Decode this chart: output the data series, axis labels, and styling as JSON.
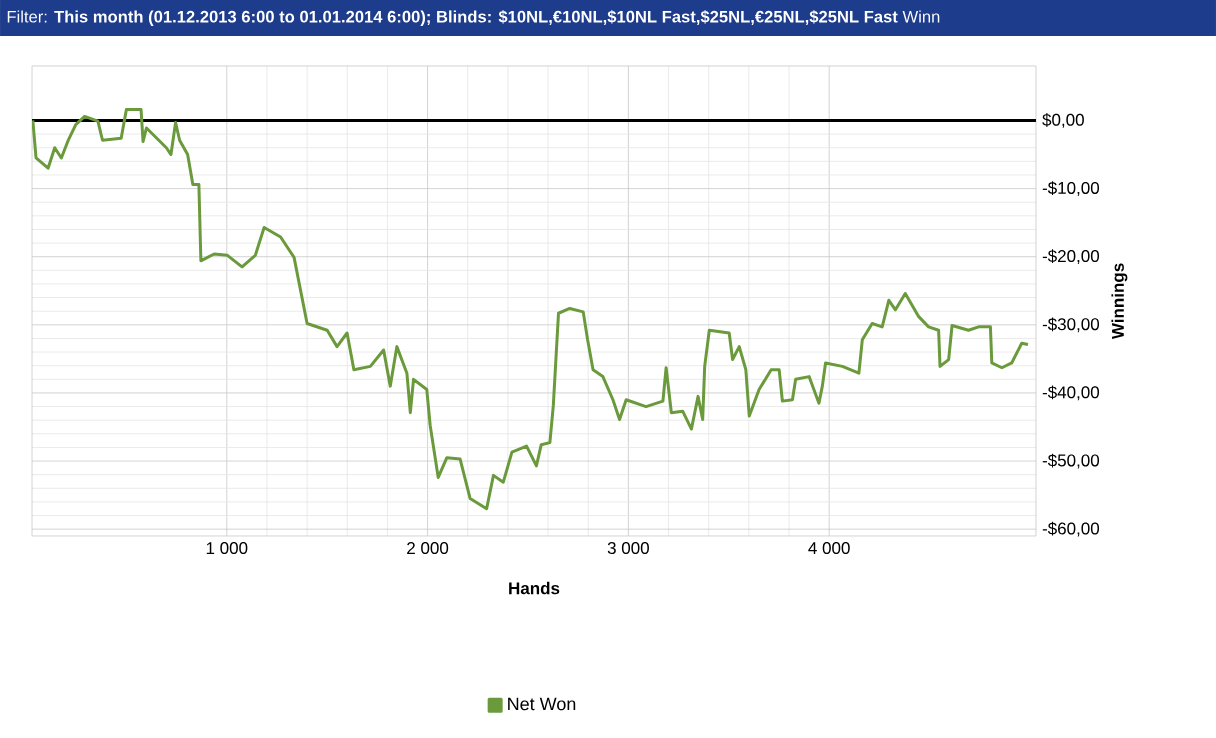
{
  "chart_data": {
    "type": "line",
    "title": "Filter: **This month (01.12.2013 6:00 to 01.01.2014 6:00); Blinds: $10NL,€10NL,$10NL Fast,$25NL,€25NL,$25NL Fast** Winn",
    "xlabel": "Hands",
    "ylabel": "Winnings",
    "series": [
      {
        "name": "Net Won",
        "color": "#6a9a3c",
        "x": [
          34,
          50,
          110,
          143,
          176,
          209,
          248,
          292,
          358,
          381,
          474,
          500,
          573,
          583,
          600,
          699,
          722,
          745,
          765,
          805,
          831,
          861,
          871,
          937,
          1003,
          1076,
          1142,
          1186,
          1268,
          1335,
          1400,
          1500,
          1549,
          1599,
          1633,
          1715,
          1781,
          1814,
          1847,
          1897,
          1914,
          1930,
          1996,
          2013,
          2053,
          2096,
          2162,
          2212,
          2294,
          2328,
          2377,
          2420,
          2493,
          2542,
          2566,
          2609,
          2626,
          2652,
          2708,
          2775,
          2797,
          2824,
          2873,
          2923,
          2956,
          2989,
          3088,
          3172,
          3188,
          3214,
          3271,
          3314,
          3347,
          3370,
          3380,
          3403,
          3502,
          3519,
          3552,
          3585,
          3602,
          3651,
          3711,
          3751,
          3767,
          3817,
          3833,
          3900,
          3949,
          3966,
          3982,
          4066,
          4148,
          4165,
          4214,
          4264,
          4297,
          4330,
          4379,
          4446,
          4495,
          4545,
          4552,
          4595,
          4612,
          4694,
          4744,
          4803,
          4810,
          4860,
          4909,
          4959,
          4990
        ],
        "values": [
          0,
          -5.5,
          -7,
          -4,
          -5.5,
          -3,
          -0.6,
          0.6,
          -0.1,
          -2.9,
          -2.6,
          1.6,
          1.6,
          -3.1,
          -1.1,
          -4,
          -5,
          -0.3,
          -2.9,
          -5,
          -9.4,
          -9.4,
          -20.6,
          -19.6,
          -19.8,
          -21.5,
          -19.8,
          -15.7,
          -17.1,
          -20.1,
          -29.8,
          -30.8,
          -33.2,
          -31.2,
          -36.6,
          -36.1,
          -33.7,
          -39,
          -33.2,
          -37.1,
          -42.9,
          -38,
          -39.5,
          -44.8,
          -52.4,
          -49.5,
          -49.7,
          -55.5,
          -57,
          -52.1,
          -53.1,
          -48.7,
          -47.8,
          -50.7,
          -47.6,
          -47.3,
          -41.9,
          -28.3,
          -27.6,
          -28.1,
          -32.2,
          -36.6,
          -37.6,
          -41,
          -43.9,
          -41,
          -42,
          -41.2,
          -36.3,
          -42.9,
          -42.7,
          -45.3,
          -40.5,
          -43.9,
          -36.1,
          -30.8,
          -31.2,
          -35.1,
          -33.2,
          -36.6,
          -43.4,
          -39.5,
          -36.6,
          -36.6,
          -41.2,
          -41,
          -38,
          -37.6,
          -41.5,
          -39,
          -35.6,
          -36.1,
          -37.1,
          -32.2,
          -29.8,
          -30.3,
          -26.4,
          -27.8,
          -25.4,
          -28.8,
          -30.3,
          -30.8,
          -36.1,
          -35.1,
          -30.1,
          -30.8,
          -30.3,
          -30.3,
          -35.6,
          -36.3,
          -35.6,
          -32.7,
          -32.9
        ]
      }
    ],
    "xlim": [
      30,
      5030
    ],
    "ylim": [
      -61,
      8
    ],
    "xticks": [
      {
        "value": 1000,
        "label": "1 000"
      },
      {
        "value": 2000,
        "label": "2 000"
      },
      {
        "value": 3000,
        "label": "3 000"
      },
      {
        "value": 4000,
        "label": "4 000"
      }
    ],
    "yticks": [
      {
        "value": 0,
        "label": "$0,00"
      },
      {
        "value": -10,
        "label": "-$10,00"
      },
      {
        "value": -20,
        "label": "-$20,00"
      },
      {
        "value": -30,
        "label": "-$30,00"
      },
      {
        "value": -40,
        "label": "-$40,00"
      },
      {
        "value": -50,
        "label": "-$50,00"
      },
      {
        "value": -60,
        "label": "-$60,00"
      }
    ],
    "ref_lines": [
      {
        "axis": "y",
        "value": 0,
        "color": "#000000"
      }
    ],
    "grid": true,
    "legend": "bottom",
    "marker": "none",
    "line_style": "solid"
  }
}
